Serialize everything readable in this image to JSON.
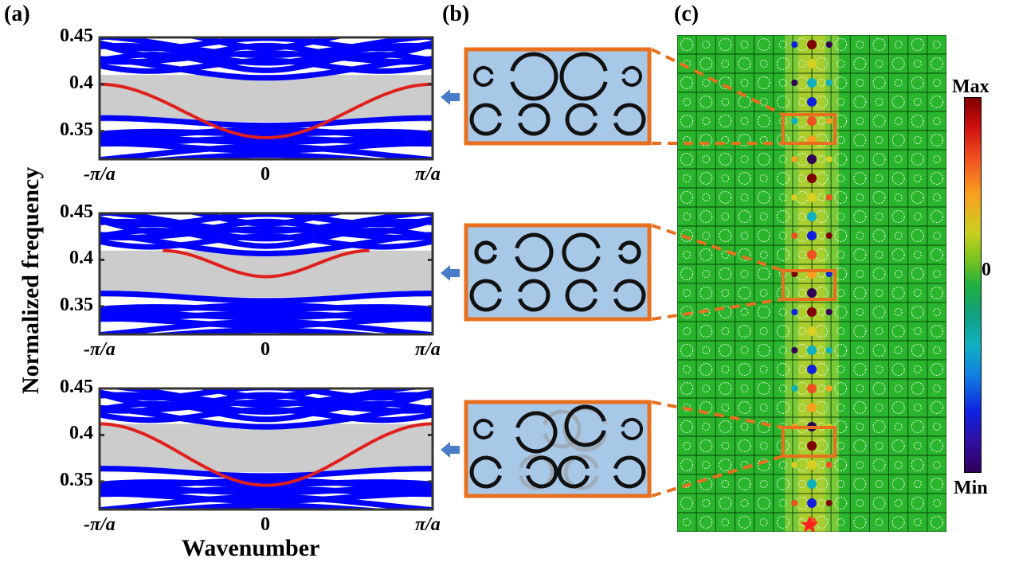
{
  "panels": {
    "a": "(a)",
    "b": "(b)",
    "c": "(c)"
  },
  "axes": {
    "ylabel": "Normalized frequency",
    "xlabel": "Wavenumber",
    "yticks": [
      "0.45",
      "0.4",
      "0.35"
    ],
    "xticks": [
      "-π/a",
      "0",
      "π/a"
    ]
  },
  "colorbar": {
    "max_label": "Max",
    "mid_label": "0",
    "min_label": "Min"
  },
  "colors": {
    "bulk_band": "#0000ff",
    "gap": "#cccccc",
    "edge_mode": "#e0201c",
    "frame": "#e8701e",
    "unit_cell_bg": "#a8c8e8",
    "field_bg": "#29b52c",
    "arrow": "#4a7cc8"
  },
  "chart_data": [
    {
      "type": "line",
      "title": "",
      "xlabel": "Wavenumber",
      "ylabel": "Normalized frequency",
      "xlim": [
        -1,
        1
      ],
      "ylim": [
        0.32,
        0.45
      ],
      "gap": [
        0.36,
        0.41
      ],
      "series": [
        {
          "x": [
            -1,
            -0.5,
            0,
            0.5,
            1
          ],
          "values": [
            0.4,
            0.372,
            0.343,
            0.372,
            0.4
          ]
        }
      ]
    },
    {
      "type": "line",
      "title": "",
      "xlabel": "Wavenumber",
      "ylabel": "Normalized frequency",
      "xlim": [
        -1,
        1
      ],
      "ylim": [
        0.32,
        0.45
      ],
      "gap": [
        0.36,
        0.41
      ],
      "series": [
        {
          "x": [
            -0.62,
            -0.3,
            0,
            0.3,
            0.62
          ],
          "values": [
            0.41,
            0.389,
            0.382,
            0.389,
            0.41
          ]
        }
      ]
    },
    {
      "type": "line",
      "title": "",
      "xlabel": "Wavenumber",
      "ylabel": "Normalized frequency",
      "xlim": [
        -1,
        1
      ],
      "ylim": [
        0.32,
        0.45
      ],
      "gap": [
        0.36,
        0.412
      ],
      "series": [
        {
          "x": [
            -1,
            -0.5,
            0,
            0.5,
            1
          ],
          "values": [
            0.412,
            0.379,
            0.346,
            0.379,
            0.412
          ]
        }
      ]
    }
  ]
}
